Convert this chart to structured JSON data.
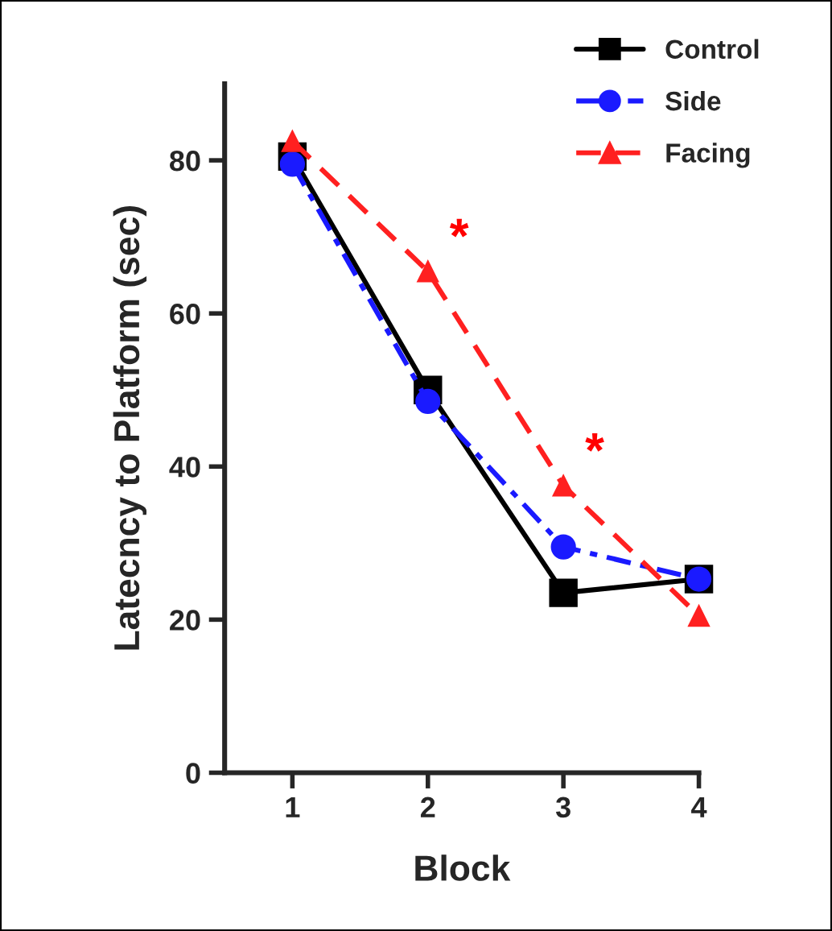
{
  "chart_data": {
    "type": "line",
    "xlabel": "Block",
    "ylabel": "Latecncy to Platform (sec)",
    "x": [
      1,
      2,
      3,
      4
    ],
    "xlim": [
      0.5,
      4
    ],
    "xticks": [
      1,
      2,
      3,
      4
    ],
    "ylim": [
      0,
      90
    ],
    "yticks": [
      0,
      20,
      40,
      60,
      80
    ],
    "series": [
      {
        "name": "Control",
        "color": "#000000",
        "values": [
          80.5,
          50,
          23.5,
          25.3
        ],
        "marker": "square",
        "line_style": "solid"
      },
      {
        "name": "Side",
        "color": "#1a1aff",
        "values": [
          79.5,
          48.5,
          29.5,
          25.3
        ],
        "marker": "circle",
        "line_style": "dashdot"
      },
      {
        "name": "Facing",
        "color": "#ff2020",
        "values": [
          82.5,
          65.5,
          37.5,
          20.5
        ],
        "marker": "triangle",
        "line_style": "dashed"
      }
    ],
    "annotations": [
      "*",
      "*"
    ],
    "legend": "top right",
    "grid": false
  }
}
